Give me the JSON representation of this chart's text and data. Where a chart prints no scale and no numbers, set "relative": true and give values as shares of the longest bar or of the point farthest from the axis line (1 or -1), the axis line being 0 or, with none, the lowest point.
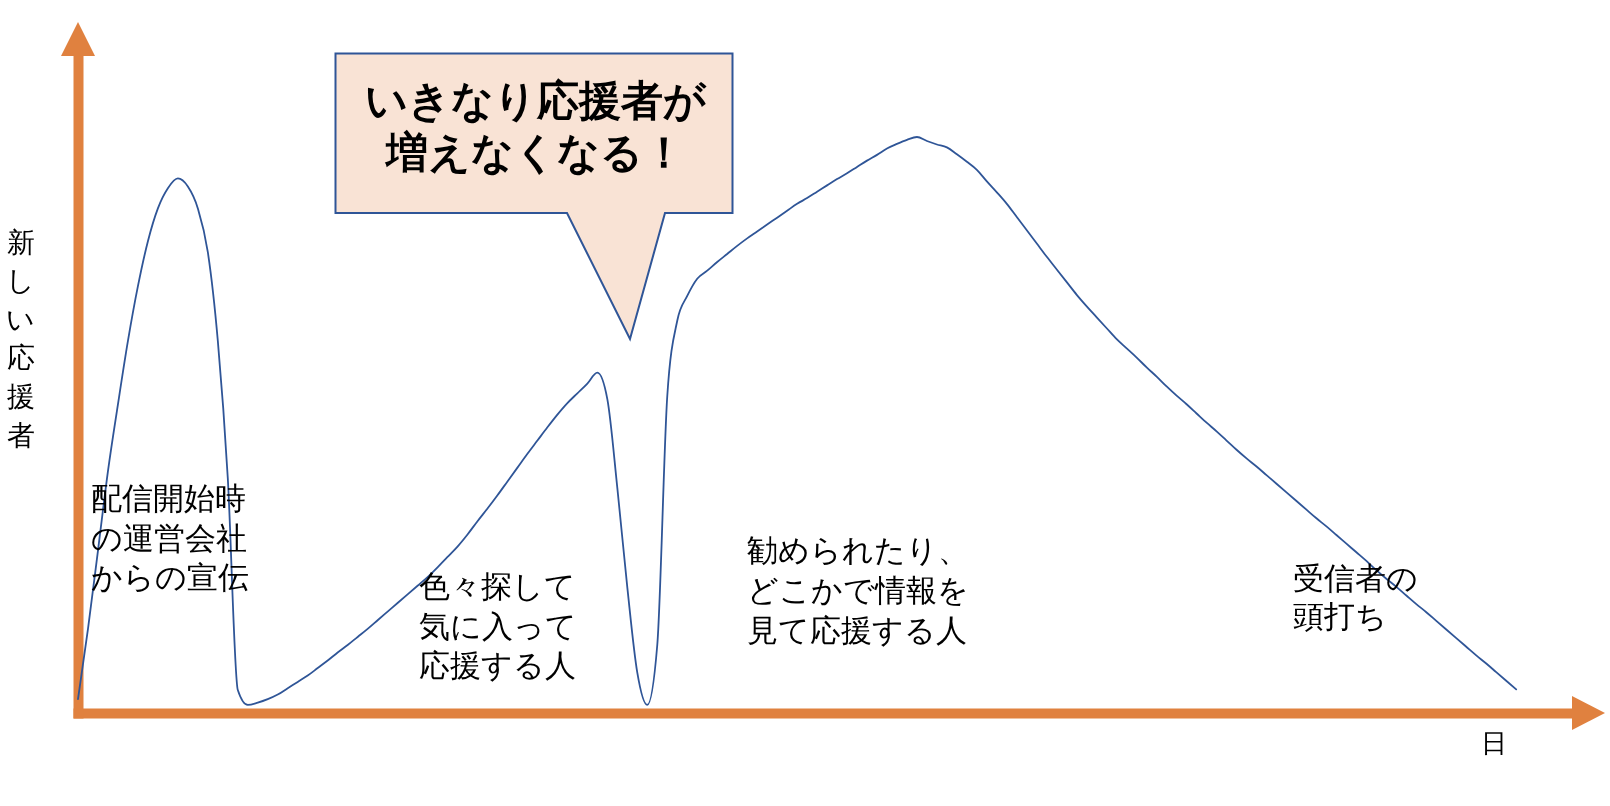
{
  "chart_data": {
    "type": "line",
    "relative": true,
    "xlabel": "日",
    "ylabel": "新しい応援者",
    "color": "#2f5597",
    "categories": [
      null,
      null,
      null,
      null,
      null,
      null,
      null,
      null,
      null,
      null,
      null,
      null,
      null,
      null,
      null,
      null,
      null,
      null,
      null,
      null,
      null,
      null,
      null,
      null,
      null,
      null,
      null,
      null,
      null,
      null,
      null,
      null,
      null,
      null,
      null,
      null,
      null,
      null,
      null,
      null,
      null,
      null,
      null,
      null,
      null,
      null,
      null,
      null,
      null,
      null,
      null,
      null,
      null,
      null,
      null,
      null,
      null,
      null,
      null,
      null,
      null,
      null,
      null,
      null,
      null,
      null,
      null,
      null,
      null,
      null,
      null,
      null,
      null,
      null,
      null,
      null,
      null,
      null,
      null,
      null,
      null,
      null,
      null,
      null,
      null,
      null,
      null,
      null,
      null,
      null,
      null,
      null,
      null,
      null,
      null,
      null,
      null,
      null,
      null,
      null,
      null,
      null,
      null,
      null,
      null,
      null,
      null,
      null,
      null,
      null,
      null,
      null,
      null,
      null,
      null,
      null,
      null,
      null,
      null,
      null,
      null,
      null,
      null,
      null,
      null,
      null,
      null,
      null,
      null,
      null,
      null,
      null,
      null,
      null,
      null,
      null,
      null,
      null,
      null,
      null,
      null,
      null,
      null,
      null,
      null
    ],
    "values": [
      0.024,
      0.146,
      0.282,
      0.42,
      0.536,
      0.646,
      0.741,
      0.819,
      0.876,
      0.911,
      0.928,
      0.914,
      0.876,
      0.8,
      0.646,
      0.407,
      0.04,
      0.014,
      0.018,
      0.024,
      0.032,
      0.043,
      0.054,
      0.065,
      0.078,
      0.091,
      0.105,
      0.118,
      0.132,
      0.146,
      0.161,
      0.176,
      0.191,
      0.206,
      0.221,
      0.236,
      0.253,
      0.271,
      0.289,
      0.31,
      0.333,
      0.355,
      0.378,
      0.402,
      0.426,
      0.45,
      0.473,
      0.496,
      0.518,
      0.538,
      0.555,
      0.572,
      0.591,
      0.545,
      0.391,
      0.218,
      0.07,
      0.014,
      0.118,
      0.55,
      0.681,
      0.724,
      0.754,
      0.768,
      0.783,
      0.797,
      0.811,
      0.824,
      0.836,
      0.848,
      0.86,
      0.872,
      0.884,
      0.894,
      0.905,
      0.916,
      0.927,
      0.937,
      0.948,
      0.959,
      0.969,
      0.98,
      0.988,
      0.995,
      1,
      0.993,
      0.987,
      0.982,
      0.97,
      0.957,
      0.943,
      0.923,
      0.904,
      0.884,
      0.861,
      0.838,
      0.815,
      0.792,
      0.77,
      0.748,
      0.726,
      0.706,
      0.687,
      0.668,
      0.649,
      0.633,
      0.617,
      0.6,
      0.584,
      0.567,
      0.551,
      0.536,
      0.52,
      0.504,
      0.489,
      0.473,
      0.457,
      0.442,
      0.428,
      0.413,
      0.398,
      0.383,
      0.368,
      0.353,
      0.338,
      0.324,
      0.309,
      0.294,
      0.279,
      0.264,
      0.248,
      0.233,
      0.219,
      0.204,
      0.189,
      0.175,
      0.16,
      0.145,
      0.13,
      0.115,
      0.1,
      0.086,
      0.071,
      0.056,
      0.041
    ],
    "annotations": [
      "配信開始時の運営会社からの宣伝",
      "いきなり応援者が増えなくなる！",
      "色々探して気に入って応援する人",
      "勧められたり、どこかで情報を見て応援する人",
      "受信者の頭打ち"
    ]
  }
}
